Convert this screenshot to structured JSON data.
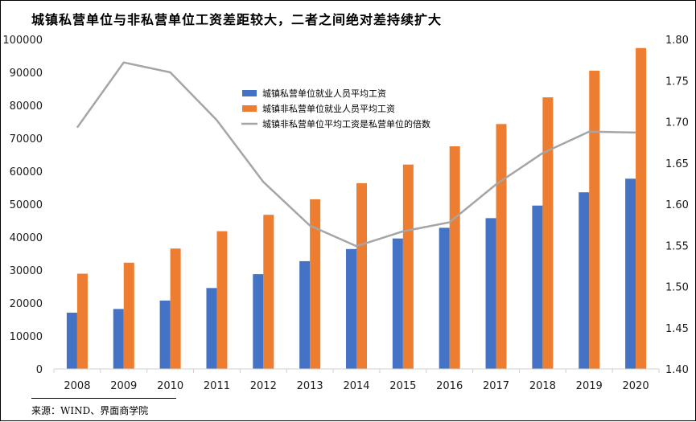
{
  "title": "城镇私营单位与非私营单位工资差距较大，二者之间绝对差持续扩大",
  "source": "来源：WIND、界面商学院",
  "chart_data": {
    "type": "bar+line",
    "title": "城镇私营单位与非私营单位工资差距较大，二者之间绝对差持续扩大",
    "categories": [
      "2008",
      "2009",
      "2010",
      "2011",
      "2012",
      "2013",
      "2014",
      "2015",
      "2016",
      "2017",
      "2018",
      "2019",
      "2020"
    ],
    "left_axis": {
      "ylim": [
        0,
        100000
      ],
      "ticks": [
        "0",
        "10000",
        "20000",
        "30000",
        "40000",
        "50000",
        "60000",
        "70000",
        "80000",
        "90000",
        "100000"
      ]
    },
    "right_axis": {
      "ylim": [
        1.4,
        1.8
      ],
      "ticks": [
        "1.40",
        "1.45",
        "1.50",
        "1.55",
        "1.60",
        "1.65",
        "1.70",
        "1.75",
        "1.80"
      ]
    },
    "series": [
      {
        "name": "城镇私营单位就业人员平均工资",
        "kind": "bar",
        "axis": "left",
        "color": "#4472C4",
        "values": [
          17071,
          18199,
          20759,
          24556,
          28752,
          32706,
          36390,
          39589,
          42833,
          45761,
          49575,
          53604,
          57727
        ]
      },
      {
        "name": "城镇非私营单位就业人员平均工资",
        "kind": "bar",
        "axis": "left",
        "color": "#ED7D31",
        "values": [
          28898,
          32244,
          36539,
          41799,
          46769,
          51483,
          56360,
          62029,
          67569,
          74318,
          82413,
          90501,
          97379
        ]
      },
      {
        "name": "城镇非私营单位平均工资是私营单位的倍数",
        "kind": "line",
        "axis": "right",
        "color": "#A5A5A5",
        "values": [
          1.693,
          1.772,
          1.76,
          1.702,
          1.627,
          1.574,
          1.549,
          1.567,
          1.578,
          1.624,
          1.662,
          1.688,
          1.687
        ]
      }
    ],
    "legend_position": "upper-center"
  }
}
